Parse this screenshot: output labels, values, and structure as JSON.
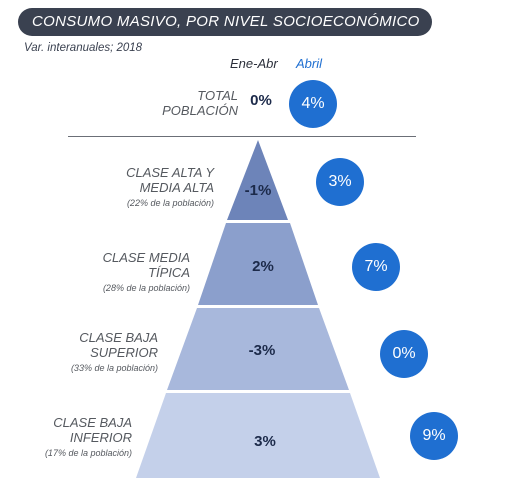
{
  "title": "CONSUMO MASIVO, POR NIVEL SOCIOECONÓMICO",
  "subtitle": "Var. interanuales; 2018",
  "columns": {
    "ene_abr": "Ene-Abr",
    "abril": "Abril"
  },
  "total": {
    "label_line1": "TOTAL",
    "label_line2": "POBLACIÓN",
    "ene_abr": "0%",
    "abril": "4%"
  },
  "tiers": [
    {
      "line1": "CLASE ALTA Y",
      "line2": "MEDIA ALTA",
      "share": "(22% de la población)",
      "ene_abr": "-1%",
      "abril": "3%",
      "color": "#6d84b9"
    },
    {
      "line1": "CLASE MEDIA",
      "line2": "TÍPICA",
      "share": "(28% de la población)",
      "ene_abr": "2%",
      "abril": "7%",
      "color": "#8b9fcc"
    },
    {
      "line1": "CLASE BAJA",
      "line2": "SUPERIOR",
      "share": "(33% de la población)",
      "ene_abr": "-3%",
      "abril": "0%",
      "color": "#a8b8dc"
    },
    {
      "line1": "CLASE BAJA",
      "line2": "INFERIOR",
      "share": "(17% de la población)",
      "ene_abr": "3%",
      "abril": "9%",
      "color": "#c4d0ea"
    }
  ],
  "chart_data": {
    "type": "table",
    "title": "CONSUMO MASIVO, POR NIVEL SOCIOECONÓMICO",
    "subtitle": "Var. interanuales; 2018",
    "columns": [
      "Ene-Abr",
      "Abril"
    ],
    "rows": [
      {
        "segment": "TOTAL POBLACIÓN",
        "population_share": null,
        "ene_abr": 0,
        "abril": 4
      },
      {
        "segment": "CLASE ALTA Y MEDIA ALTA",
        "population_share": 22,
        "ene_abr": -1,
        "abril": 3
      },
      {
        "segment": "CLASE MEDIA TÍPICA",
        "population_share": 28,
        "ene_abr": 2,
        "abril": 7
      },
      {
        "segment": "CLASE BAJA SUPERIOR",
        "population_share": 33,
        "ene_abr": -3,
        "abril": 0
      },
      {
        "segment": "CLASE BAJA INFERIOR",
        "population_share": 17,
        "ene_abr": 3,
        "abril": 9
      }
    ],
    "unit": "%"
  }
}
